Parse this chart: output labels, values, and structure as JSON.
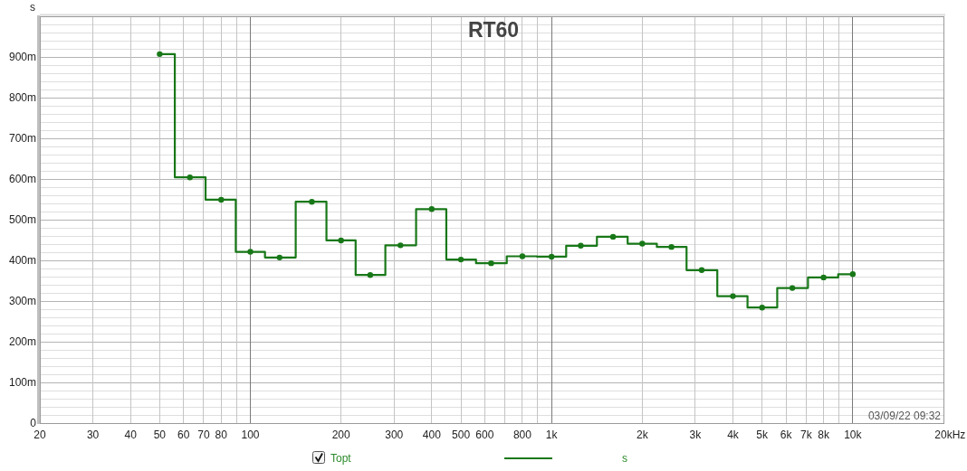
{
  "chart_data": {
    "type": "step",
    "title": "RT60",
    "ylabel": "s",
    "xlabel": "Hz",
    "log": "x",
    "grid": true,
    "marker": "circle",
    "legend": "bottom",
    "xlim": [
      20,
      20000
    ],
    "ylim": [
      0,
      1000
    ],
    "xticks": [
      20,
      30,
      40,
      50,
      60,
      70,
      80,
      {
        "value": 90,
        "label": null
      },
      100,
      200,
      300,
      400,
      500,
      600,
      {
        "value": 700,
        "label": null
      },
      800,
      {
        "value": 900,
        "label": null
      },
      {
        "value": 1000,
        "label": "1k"
      },
      {
        "value": 2000,
        "label": "2k"
      },
      {
        "value": 3000,
        "label": "3k"
      },
      {
        "value": 4000,
        "label": "4k"
      },
      {
        "value": 5000,
        "label": "5k"
      },
      {
        "value": 6000,
        "label": "6k"
      },
      {
        "value": 7000,
        "label": "7k"
      },
      {
        "value": 8000,
        "label": "8k"
      },
      {
        "value": 9000,
        "label": null
      },
      {
        "value": 10000,
        "label": "10k"
      },
      {
        "value": 20000,
        "label": "20k"
      }
    ],
    "yticks": [
      0,
      {
        "value": 20,
        "label": null
      },
      {
        "value": 40,
        "label": null
      },
      {
        "value": 60,
        "label": null
      },
      {
        "value": 80,
        "label": null
      },
      {
        "value": 100,
        "label": "100m"
      },
      {
        "value": 120,
        "label": null
      },
      {
        "value": 140,
        "label": null
      },
      {
        "value": 160,
        "label": null
      },
      {
        "value": 180,
        "label": null
      },
      {
        "value": 200,
        "label": "200m"
      },
      {
        "value": 220,
        "label": null
      },
      {
        "value": 240,
        "label": null
      },
      {
        "value": 260,
        "label": null
      },
      {
        "value": 280,
        "label": null
      },
      {
        "value": 300,
        "label": "300m"
      },
      {
        "value": 320,
        "label": null
      },
      {
        "value": 340,
        "label": null
      },
      {
        "value": 360,
        "label": null
      },
      {
        "value": 380,
        "label": null
      },
      {
        "value": 400,
        "label": "400m"
      },
      {
        "value": 420,
        "label": null
      },
      {
        "value": 440,
        "label": null
      },
      {
        "value": 460,
        "label": null
      },
      {
        "value": 480,
        "label": null
      },
      {
        "value": 500,
        "label": "500m"
      },
      {
        "value": 520,
        "label": null
      },
      {
        "value": 540,
        "label": null
      },
      {
        "value": 560,
        "label": null
      },
      {
        "value": 580,
        "label": null
      },
      {
        "value": 600,
        "label": "600m"
      },
      {
        "value": 620,
        "label": null
      },
      {
        "value": 640,
        "label": null
      },
      {
        "value": 660,
        "label": null
      },
      {
        "value": 680,
        "label": null
      },
      {
        "value": 700,
        "label": "700m"
      },
      {
        "value": 720,
        "label": null
      },
      {
        "value": 740,
        "label": null
      },
      {
        "value": 760,
        "label": null
      },
      {
        "value": 780,
        "label": null
      },
      {
        "value": 800,
        "label": "800m"
      },
      {
        "value": 820,
        "label": null
      },
      {
        "value": 840,
        "label": null
      },
      {
        "value": 860,
        "label": null
      },
      {
        "value": 880,
        "label": null
      },
      {
        "value": 900,
        "label": "900m"
      },
      {
        "value": 920,
        "label": null
      },
      {
        "value": 940,
        "label": null
      },
      {
        "value": 960,
        "label": null
      },
      {
        "value": 980,
        "label": null
      }
    ],
    "x": [
      50,
      63,
      80,
      100,
      125,
      160,
      200,
      250,
      315,
      400,
      500,
      630,
      800,
      1000,
      1250,
      1600,
      2000,
      2500,
      3150,
      4000,
      5000,
      6300,
      8000,
      10000
    ],
    "series": [
      {
        "name": "s",
        "color": "#187818",
        "values": [
          907,
          604,
          549,
          421,
          407,
          544,
          449,
          364,
          437,
          526,
          402,
          393,
          410,
          409,
          436,
          458,
          441,
          433,
          376,
          312,
          284,
          332,
          358,
          366
        ]
      }
    ],
    "annotations": [
      "03/09/22 09:32",
      "Topt"
    ]
  }
}
